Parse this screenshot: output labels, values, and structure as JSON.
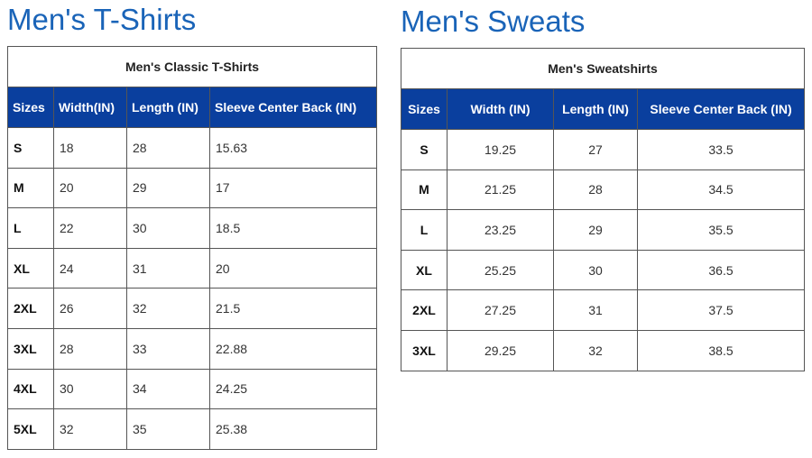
{
  "tshirts": {
    "title": "Men's T-Shirts",
    "caption": "Men's Classic T-Shirts",
    "headers": [
      "Sizes",
      "Width(IN)",
      "Length (IN)",
      "Sleeve Center Back (IN)"
    ],
    "rows": [
      [
        "S",
        "18",
        "28",
        "15.63"
      ],
      [
        "M",
        "20",
        "29",
        "17"
      ],
      [
        "L",
        "22",
        "30",
        "18.5"
      ],
      [
        "XL",
        "24",
        "31",
        "20"
      ],
      [
        "2XL",
        "26",
        "32",
        "21.5"
      ],
      [
        "3XL",
        "28",
        "33",
        "22.88"
      ],
      [
        "4XL",
        "30",
        "34",
        "24.25"
      ],
      [
        "5XL",
        "32",
        "35",
        "25.38"
      ]
    ]
  },
  "sweats": {
    "title": "Men's Sweats",
    "caption": "Men's Sweatshirts",
    "headers": [
      "Sizes",
      "Width (IN)",
      "Length (IN)",
      "Sleeve Center Back (IN)"
    ],
    "rows": [
      [
        "S",
        "19.25",
        "27",
        "33.5"
      ],
      [
        "M",
        "21.25",
        "28",
        "34.5"
      ],
      [
        "L",
        "23.25",
        "29",
        "35.5"
      ],
      [
        "XL",
        "25.25",
        "30",
        "36.5"
      ],
      [
        "2XL",
        "27.25",
        "31",
        "37.5"
      ],
      [
        "3XL",
        "29.25",
        "32",
        "38.5"
      ]
    ]
  },
  "colors": {
    "title": "#1a64b8",
    "header_bg": "#0a3f9e",
    "header_text": "#ffffff",
    "border": "#555555"
  }
}
